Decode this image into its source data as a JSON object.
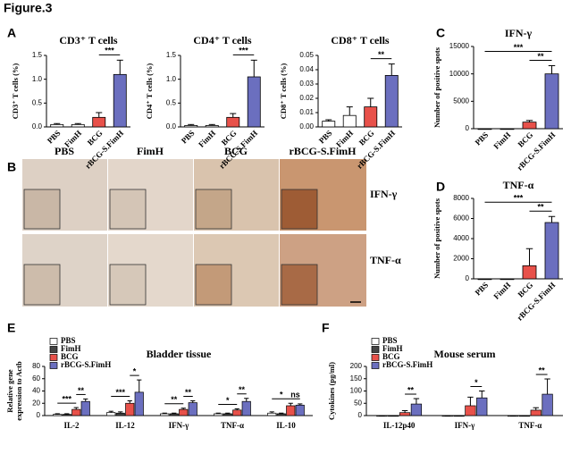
{
  "figure_label": "Figure.3",
  "panel_labels": [
    "A",
    "B",
    "C",
    "D",
    "E",
    "F"
  ],
  "panel_b": {
    "columns": [
      "PBS",
      "FimH",
      "BCG",
      "rBCG-S.FimH"
    ],
    "rows": [
      "IFN-γ",
      "TNF-α"
    ]
  },
  "chart_data": [
    {
      "type": "bar",
      "title": "CD3⁺ T cells",
      "ylabel": [
        "CD3⁺ T cells (%)"
      ],
      "categories": [
        "PBS",
        "FimH",
        "BCG",
        "rBCG-S.FimH"
      ],
      "values": [
        0.05,
        0.05,
        0.2,
        1.1
      ],
      "errors": [
        0.02,
        0.02,
        0.1,
        0.3
      ],
      "colors": [
        "#ffffff",
        "#ffffff",
        "#e8514a",
        "#6b6fbf"
      ],
      "ylim": [
        0,
        1.5
      ],
      "yticks": [
        {
          "value": 0,
          "label": "0.0"
        },
        0.5,
        {
          "value": 1,
          "label": "1.0"
        },
        1.5
      ],
      "annotations": [
        {
          "text": "***",
          "between": [
            "BCG",
            "rBCG-S.FimH"
          ]
        }
      ]
    },
    {
      "type": "bar",
      "title": "CD4⁺ T cells",
      "ylabel": [
        "CD4⁺ T cells (%)"
      ],
      "categories": [
        "PBS",
        "FimH",
        "BCG",
        "rBCG-S.FimH"
      ],
      "values": [
        0.03,
        0.03,
        0.2,
        1.05
      ],
      "errors": [
        0.02,
        0.02,
        0.08,
        0.35
      ],
      "colors": [
        "#ffffff",
        "#ffffff",
        "#e8514a",
        "#6b6fbf"
      ],
      "ylim": [
        0,
        1.5
      ],
      "yticks": [
        {
          "value": 0,
          "label": "0.0"
        },
        0.5,
        {
          "value": 1,
          "label": "1.0"
        },
        1.5
      ],
      "annotations": [
        {
          "text": "***",
          "between": [
            "BCG",
            "rBCG-S.FimH"
          ]
        }
      ]
    },
    {
      "type": "bar",
      "title": "CD8⁺ T cells",
      "ylabel": [
        "CD8⁺ T cells (%)"
      ],
      "categories": [
        "PBS",
        "FimH",
        "BCG",
        "rBCG-S.FimH"
      ],
      "values": [
        0.004,
        0.008,
        0.014,
        0.036
      ],
      "errors": [
        0.001,
        0.006,
        0.006,
        0.008
      ],
      "colors": [
        "#ffffff",
        "#ffffff",
        "#e8514a",
        "#6b6fbf"
      ],
      "ylim": [
        0,
        0.05
      ],
      "yticks": [
        {
          "value": 0,
          "label": "0.00"
        },
        {
          "value": 0.01,
          "label": "0.01"
        },
        {
          "value": 0.02,
          "label": "0.02"
        },
        {
          "value": 0.03,
          "label": "0.03"
        },
        {
          "value": 0.04,
          "label": "0.04"
        },
        {
          "value": 0.05,
          "label": "0.05"
        }
      ],
      "annotations": [
        {
          "text": "**",
          "between": [
            "BCG",
            "rBCG-S.FimH"
          ]
        }
      ]
    },
    {
      "type": "bar",
      "title": "IFN-γ",
      "ylabel": [
        "Number of positive spots"
      ],
      "categories": [
        "PBS",
        "FimH",
        "BCG",
        "rBCG-S.FimH"
      ],
      "values": [
        0,
        0,
        1200,
        10000
      ],
      "errors": [
        0,
        0,
        300,
        1500
      ],
      "colors": [
        "#ffffff",
        "#ffffff",
        "#e8514a",
        "#6b6fbf"
      ],
      "ylim": [
        0,
        15000
      ],
      "yticks": [
        0,
        5000,
        10000,
        15000
      ],
      "annotations": [
        {
          "text": "**",
          "between": [
            "BCG",
            "rBCG-S.FimH"
          ]
        },
        {
          "text": "***",
          "between": [
            "PBS",
            "rBCG-S.FimH"
          ]
        }
      ]
    },
    {
      "type": "bar",
      "title": "TNF-α",
      "ylabel": [
        "Number of positive spots"
      ],
      "categories": [
        "PBS",
        "FimH",
        "BCG",
        "rBCG-S.FimH"
      ],
      "values": [
        0,
        0,
        1300,
        5600
      ],
      "errors": [
        0,
        0,
        1700,
        600
      ],
      "colors": [
        "#ffffff",
        "#ffffff",
        "#e8514a",
        "#6b6fbf"
      ],
      "ylim": [
        0,
        8000
      ],
      "yticks": [
        0,
        2000,
        4000,
        6000,
        8000
      ],
      "annotations": [
        {
          "text": "**",
          "between": [
            "BCG",
            "rBCG-S.FimH"
          ]
        },
        {
          "text": "***",
          "between": [
            "PBS",
            "rBCG-S.FimH"
          ]
        }
      ]
    },
    {
      "type": "grouped_bar",
      "title": "Bladder tissue",
      "ylabel": [
        "Relative gene",
        "expression to Actb"
      ],
      "categories": [
        "IL-2",
        "IL-12",
        "IFN-γ",
        "TNF-α",
        "IL-10"
      ],
      "series": [
        {
          "name": "PBS",
          "color": "#ffffff",
          "values": [
            2,
            5,
            3,
            3,
            4
          ],
          "errors": [
            1,
            2,
            1,
            1,
            2
          ]
        },
        {
          "name": "FimH",
          "color": "#444444",
          "values": [
            2,
            4,
            3,
            3,
            3
          ],
          "errors": [
            1,
            2,
            1,
            1,
            1
          ]
        },
        {
          "name": "BCG",
          "color": "#e8514a",
          "values": [
            10,
            20,
            10,
            9,
            16
          ],
          "errors": [
            3,
            4,
            2,
            2,
            4
          ]
        },
        {
          "name": "rBCG-S.FimH",
          "color": "#6b6fbf",
          "values": [
            23,
            38,
            21,
            23,
            17
          ],
          "errors": [
            4,
            20,
            3,
            5,
            2
          ]
        }
      ],
      "ylim": [
        0,
        80
      ],
      "yticks": [
        0,
        20,
        40,
        60,
        80
      ],
      "legend": "upper left",
      "annotations": [
        {
          "text": "***",
          "category": "IL-2",
          "between": [
            "PBS",
            "BCG"
          ]
        },
        {
          "text": "**",
          "category": "IL-2",
          "between": [
            "BCG",
            "rBCG-S.FimH"
          ]
        },
        {
          "text": "***",
          "category": "IL-12",
          "between": [
            "PBS",
            "BCG"
          ]
        },
        {
          "text": "*",
          "category": "IL-12",
          "between": [
            "BCG",
            "rBCG-S.FimH"
          ]
        },
        {
          "text": "**",
          "category": "IFN-γ",
          "between": [
            "PBS",
            "BCG"
          ]
        },
        {
          "text": "**",
          "category": "IFN-γ",
          "between": [
            "BCG",
            "rBCG-S.FimH"
          ]
        },
        {
          "text": "*",
          "category": "TNF-α",
          "between": [
            "PBS",
            "BCG"
          ]
        },
        {
          "text": "**",
          "category": "TNF-α",
          "between": [
            "BCG",
            "rBCG-S.FimH"
          ]
        },
        {
          "text": "*",
          "category": "IL-10",
          "between": [
            "PBS",
            "BCG"
          ]
        },
        {
          "text": "ns",
          "category": "IL-10",
          "between": [
            "BCG",
            "rBCG-S.FimH"
          ]
        }
      ]
    },
    {
      "type": "grouped_bar",
      "title": "Mouse serum",
      "ylabel": [
        "Cytokines (pg/ml)"
      ],
      "categories": [
        "IL-12p40",
        "IFN-γ",
        "TNF-α"
      ],
      "series": [
        {
          "name": "PBS",
          "color": "#ffffff",
          "values": [
            0,
            0,
            0
          ],
          "errors": [
            0,
            0,
            0
          ]
        },
        {
          "name": "FimH",
          "color": "#444444",
          "values": [
            0,
            0,
            0
          ],
          "errors": [
            0,
            0,
            0
          ]
        },
        {
          "name": "BCG",
          "color": "#e8514a",
          "values": [
            12,
            40,
            22
          ],
          "errors": [
            8,
            35,
            10
          ]
        },
        {
          "name": "rBCG-S.FimH",
          "color": "#6b6fbf",
          "values": [
            47,
            72,
            87
          ],
          "errors": [
            22,
            28,
            62
          ]
        }
      ],
      "ylim": [
        0,
        200
      ],
      "yticks": [
        0,
        50,
        100,
        150,
        200
      ],
      "legend": "upper left",
      "annotations": [
        {
          "text": "**",
          "category": "IL-12p40",
          "between": [
            "BCG",
            "rBCG-S.FimH"
          ]
        },
        {
          "text": "*",
          "category": "IFN-γ",
          "between": [
            "BCG",
            "rBCG-S.FimH"
          ]
        },
        {
          "text": "**",
          "category": "TNF-α",
          "between": [
            "BCG",
            "rBCG-S.FimH"
          ]
        }
      ]
    }
  ]
}
